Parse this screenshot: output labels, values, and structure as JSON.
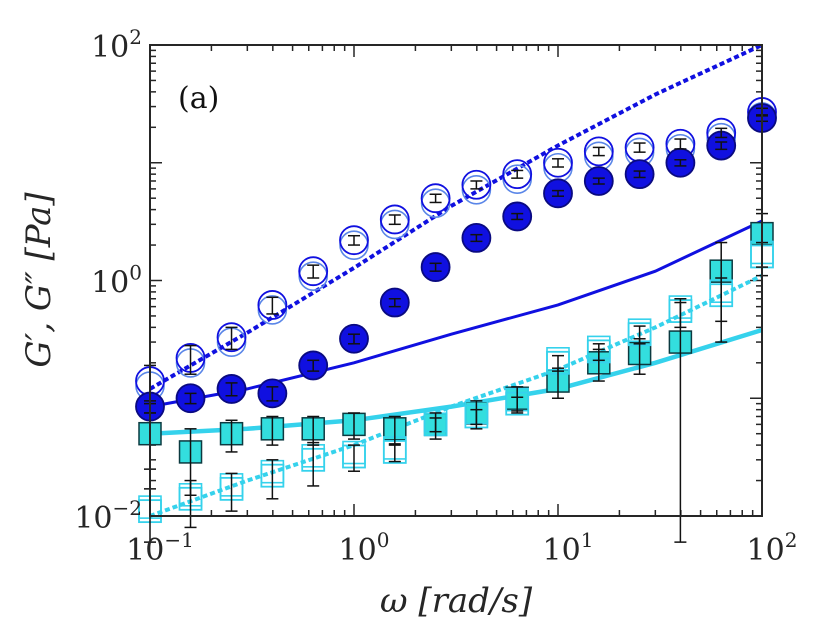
{
  "chart_data": {
    "type": "scatter",
    "panel_label": "(a)",
    "xlabel": "ω [rad/s]",
    "ylabel": "G′, G″ [Pa]",
    "xscale": "log",
    "yscale": "log",
    "xlim": [
      0.1,
      100
    ],
    "ylim": [
      0.01,
      100
    ],
    "x_ticks": [
      {
        "value": 0.1,
        "base": "10",
        "exp": "−1"
      },
      {
        "value": 1,
        "base": "10",
        "exp": "0"
      },
      {
        "value": 10,
        "base": "10",
        "exp": "1"
      },
      {
        "value": 100,
        "base": "10",
        "exp": "2"
      }
    ],
    "y_ticks": [
      {
        "value": 0.01,
        "base": "10",
        "exp": "−2"
      },
      {
        "value": 1,
        "base": "10",
        "exp": "0"
      },
      {
        "value": 100,
        "base": "10",
        "exp": "2"
      }
    ],
    "colors": {
      "dark": "#1010e0",
      "dark_edge": "#0a0a80",
      "light_ring": "#5a86e8",
      "cyan": "#35d2ec",
      "cyan_fill": "#33dede",
      "error_bar": "#111111",
      "axis": "#262626"
    },
    "x": [
      0.1,
      0.158,
      0.251,
      0.398,
      0.631,
      1.0,
      1.585,
      2.512,
      3.981,
      6.31,
      10,
      15.85,
      25.12,
      39.81,
      63.1,
      100
    ],
    "series": [
      {
        "name": "G″ (hollow circles)",
        "marker": "open-circle",
        "color": "dark",
        "values": [
          0.14,
          0.22,
          0.33,
          0.62,
          1.2,
          2.2,
          3.3,
          5.0,
          6.5,
          8.0,
          10.0,
          12.5,
          13.5,
          14.5,
          18.0,
          27.0
        ],
        "error": [
          0.05,
          0.06,
          0.07,
          0.1,
          0.15,
          0.2,
          0.3,
          0.4,
          0.5,
          0.6,
          0.8,
          1.0,
          1.2,
          1.4,
          1.6,
          2.0
        ]
      },
      {
        "name": "G′ (filled circles)",
        "marker": "filled-circle",
        "color": "dark",
        "values": [
          0.085,
          0.1,
          0.12,
          0.11,
          0.19,
          0.32,
          0.65,
          1.3,
          2.3,
          3.5,
          5.5,
          7.0,
          8.0,
          10.0,
          14.0,
          24.0
        ],
        "error": [
          0.01,
          0.01,
          0.015,
          0.015,
          0.02,
          0.03,
          0.05,
          0.1,
          0.15,
          0.2,
          0.3,
          0.4,
          0.5,
          0.6,
          1.0,
          1.5
        ]
      },
      {
        "name": "G′ (filled squares)",
        "marker": "filled-square",
        "color": "cyan",
        "values": [
          0.05,
          0.035,
          0.05,
          0.055,
          0.055,
          0.06,
          0.055,
          0.06,
          0.075,
          0.1,
          0.14,
          0.2,
          0.24,
          0.3,
          1.2,
          2.5
        ],
        "error": [
          0.025,
          0.02,
          0.015,
          0.015,
          0.015,
          0.015,
          0.015,
          0.015,
          0.02,
          0.025,
          0.04,
          0.06,
          0.08,
          0.35,
          0.9,
          1.2
        ]
      },
      {
        "name": "G″ (hollow squares)",
        "marker": "open-square",
        "color": "cyan",
        "values": [
          0.011,
          0.014,
          0.017,
          0.022,
          0.03,
          0.032,
          0.035,
          0.06,
          0.07,
          0.09,
          0.2,
          0.25,
          0.35,
          0.55,
          0.75,
          1.6
        ],
        "error": [
          0.006,
          0.006,
          0.006,
          0.008,
          0.012,
          0.008,
          0.006,
          0.008,
          0.01,
          0.012,
          0.03,
          0.04,
          0.06,
          0.15,
          0.3,
          0.5
        ]
      }
    ],
    "fit_lines": [
      {
        "name": "dark dotted fit",
        "style": "dotted",
        "color": "dark",
        "x": [
          0.1,
          0.3,
          1,
          3,
          10,
          30,
          100
        ],
        "y": [
          0.12,
          0.36,
          1.28,
          4.3,
          14,
          38,
          100
        ]
      },
      {
        "name": "dark solid fit",
        "style": "solid",
        "color": "dark",
        "x": [
          0.1,
          0.3,
          1,
          3,
          10,
          30,
          100
        ],
        "y": [
          0.085,
          0.12,
          0.2,
          0.35,
          0.62,
          1.2,
          3.2
        ]
      },
      {
        "name": "cyan dotted fit",
        "style": "dotted",
        "color": "cyan",
        "x": [
          0.1,
          0.3,
          1,
          3,
          10,
          30,
          100
        ],
        "y": [
          0.01,
          0.02,
          0.04,
          0.085,
          0.175,
          0.4,
          1.1
        ]
      },
      {
        "name": "cyan solid fit",
        "style": "solid",
        "color": "cyan",
        "x": [
          0.1,
          0.3,
          1,
          3,
          10,
          30,
          100
        ],
        "y": [
          0.05,
          0.055,
          0.065,
          0.085,
          0.12,
          0.2,
          0.38
        ]
      }
    ]
  }
}
